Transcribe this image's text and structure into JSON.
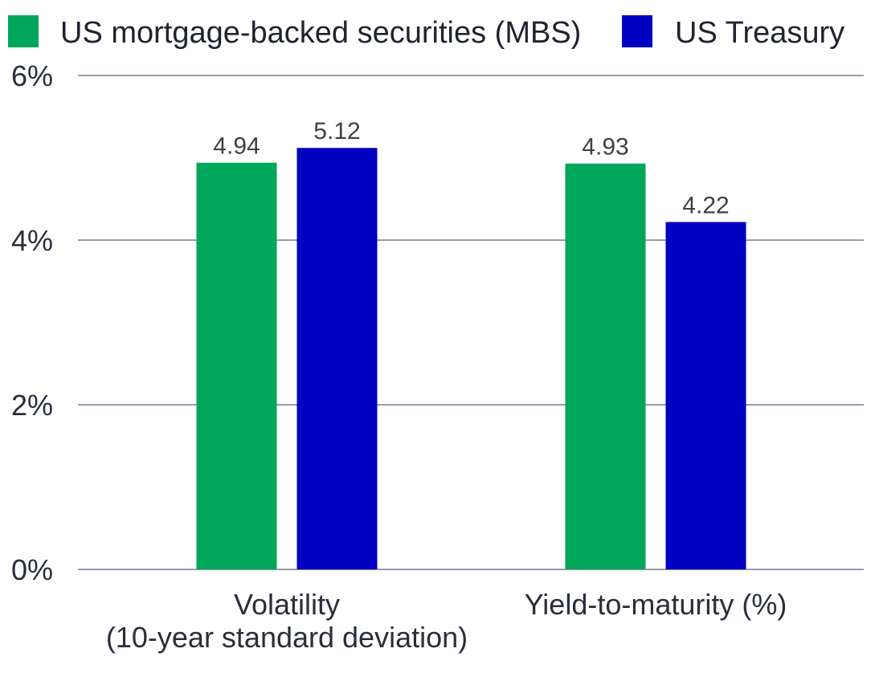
{
  "chart_data": {
    "type": "bar",
    "title": "",
    "xlabel": "",
    "ylabel": "",
    "categories": [
      [
        "Volatility",
        "(10-year standard deviation)"
      ],
      [
        "Yield-to-maturity (%)"
      ]
    ],
    "series": [
      {
        "name": "US mortgage-backed securities (MBS)",
        "color": "#00a65a",
        "values": [
          4.94,
          4.93
        ],
        "labels": [
          "4.94",
          "4.93"
        ]
      },
      {
        "name": "US Treasury",
        "color": "#0000c0",
        "values": [
          5.12,
          4.22
        ],
        "labels": [
          "5.12",
          "4.22"
        ]
      }
    ],
    "ylim": [
      0,
      6
    ],
    "yticks": [
      0,
      2,
      4,
      6
    ],
    "ytick_labels": [
      "0%",
      "2%",
      "4%",
      "6%"
    ],
    "grid": true,
    "grid_color": "#9a9aae",
    "legend_position": "top-left"
  }
}
